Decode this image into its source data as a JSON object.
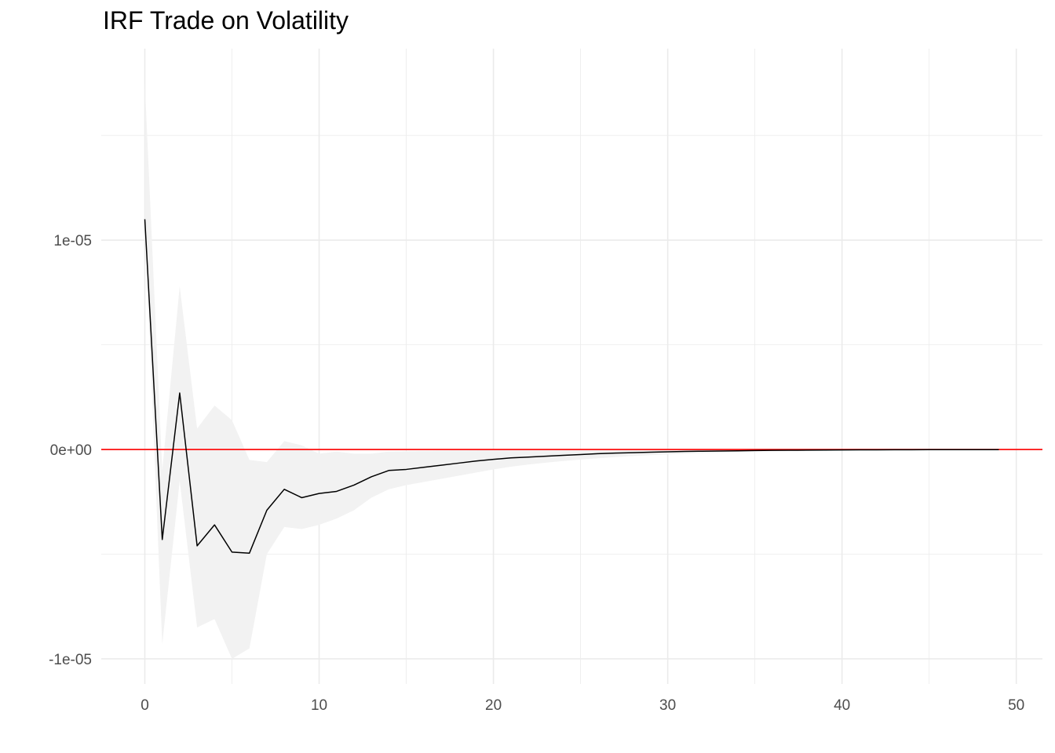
{
  "chart_data": {
    "type": "line",
    "title": "IRF Trade on Volatility",
    "xlabel": "",
    "ylabel": "",
    "xlim": [
      -2.5,
      51.5
    ],
    "ylim": [
      -1.12e-05,
      1.915e-05
    ],
    "x_ticks": [
      0,
      10,
      20,
      30,
      40,
      50
    ],
    "x_tick_labels": [
      "0",
      "10",
      "20",
      "30",
      "40",
      "50"
    ],
    "y_ticks": [
      -1e-05,
      0,
      1e-05
    ],
    "y_tick_labels": [
      "-1e-05",
      "0e+00",
      "1e-05"
    ],
    "grid": true,
    "reference_line": {
      "y": 0,
      "color": "#ff0000"
    },
    "series": [
      {
        "line_color": "#000000",
        "x": [
          0,
          1,
          2,
          3,
          4,
          5,
          6,
          7,
          8,
          9,
          10,
          11,
          12,
          13,
          14,
          15,
          16,
          17,
          18,
          19,
          20,
          21,
          22,
          23,
          24,
          25,
          26,
          27,
          28,
          29,
          30,
          31,
          32,
          33,
          34,
          35,
          36,
          37,
          38,
          39,
          40,
          41,
          42,
          43,
          44,
          45,
          46,
          47,
          48,
          49
        ],
        "y": [
          1.1e-05,
          -4.3e-06,
          2.7e-06,
          -4.6e-06,
          -3.6e-06,
          -4.9e-06,
          -4.95e-06,
          -2.9e-06,
          -1.9e-06,
          -2.3e-06,
          -2.1e-06,
          -2e-06,
          -1.7e-06,
          -1.3e-06,
          -1e-06,
          -9.5e-07,
          -8.5e-07,
          -7.5e-07,
          -6.5e-07,
          -5.5e-07,
          -4.7e-07,
          -4e-07,
          -3.6e-07,
          -3.2e-07,
          -2.8e-07,
          -2.4e-07,
          -2e-07,
          -1.7e-07,
          -1.5e-07,
          -1.3e-07,
          -1.1e-07,
          -9e-08,
          -8e-08,
          -7e-08,
          -6e-08,
          -5e-08,
          -4e-08,
          -3.5e-08,
          -3e-08,
          -2.5e-08,
          -2e-08,
          -1.7e-08,
          -1.4e-08,
          -1.2e-08,
          -1e-08,
          -8e-09,
          -7e-09,
          -6e-09,
          -5e-09,
          -4e-09
        ],
        "lower": [
          1.1e-05,
          -9.3e-06,
          -1.5e-06,
          -8.5e-06,
          -8.1e-06,
          -1e-05,
          -9.5e-06,
          -5e-06,
          -3.7e-06,
          -3.8e-06,
          -3.6e-06,
          -3.3e-06,
          -2.9e-06,
          -2.3e-06,
          -1.9e-06,
          -1.7e-06,
          -1.55e-06,
          -1.4e-06,
          -1.25e-06,
          -1.1e-06,
          -9.5e-07,
          -8.2e-07,
          -7.2e-07,
          -6.3e-07,
          -5.5e-07,
          -4.8e-07,
          -4.2e-07,
          -3.6e-07,
          -3.1e-07,
          -2.7e-07,
          -2.3e-07,
          -2e-07,
          -1.7e-07,
          -1.5e-07,
          -1.3e-07,
          -1.1e-07,
          -9e-08,
          -8e-08,
          -7e-08,
          -6e-08,
          -5e-08,
          -4e-08,
          -3.5e-08,
          -3e-08,
          -2.5e-08,
          -2e-08,
          -1.7e-08,
          -1.4e-08,
          -1.2e-08,
          -1e-08
        ],
        "upper": [
          1.75e-05,
          -1e-06,
          7.8e-06,
          1e-06,
          2.1e-06,
          1.4e-06,
          -5e-07,
          -6e-07,
          4e-07,
          2e-07,
          -2e-07,
          -1e-07,
          -2e-07,
          -2e-07,
          -1e-07,
          -8e-08,
          -7e-08,
          -6e-08,
          -5e-08,
          -4e-08,
          -3e-08,
          -2.5e-08,
          -2e-08,
          -1.8e-08,
          -1.5e-08,
          -1.2e-08,
          -1e-08,
          -8e-09,
          -7e-09,
          -6e-09,
          -5e-09,
          -4e-09,
          -3e-09,
          -2e-09,
          -2e-09,
          -1e-09,
          -1e-09,
          -1e-09,
          0,
          0,
          0,
          0,
          0,
          0,
          0,
          0,
          0,
          0,
          0,
          0
        ]
      }
    ],
    "band_color": "#f2f2f2",
    "grid_color": "#ebebeb"
  }
}
